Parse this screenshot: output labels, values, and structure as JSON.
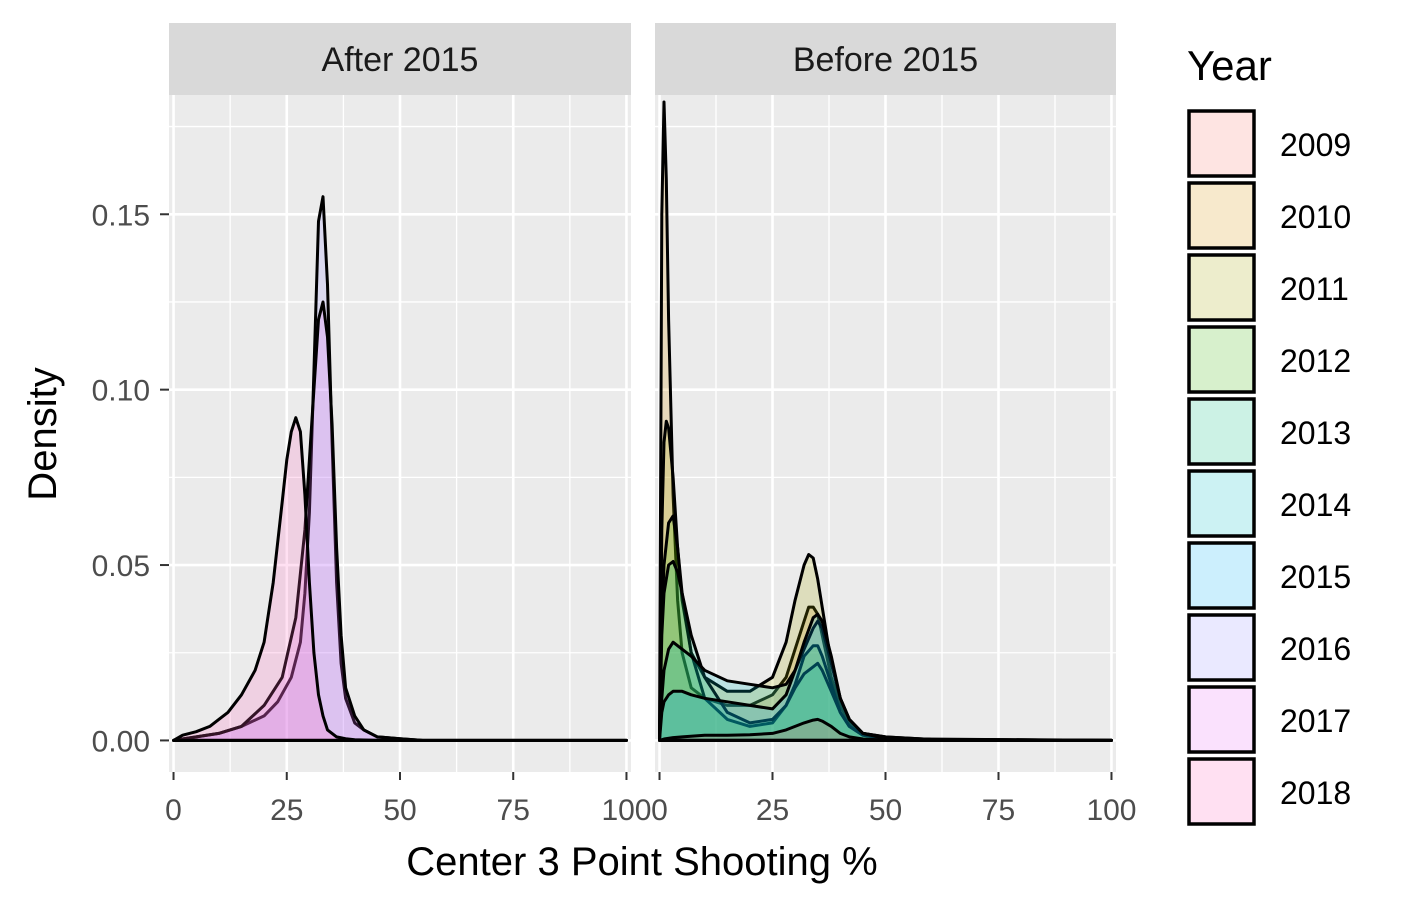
{
  "chart_data": {
    "type": "area",
    "subtype": "density",
    "xlabel": "Center 3 Point Shooting %",
    "ylabel": "Density",
    "xlim": [
      -1,
      101
    ],
    "ylim": [
      -0.009,
      0.184
    ],
    "x_ticks": [
      0,
      25,
      50,
      75,
      100
    ],
    "x_tick_labels": [
      "0",
      "25",
      "50",
      "75",
      "100"
    ],
    "y_ticks": [
      0,
      0.05,
      0.1,
      0.15
    ],
    "y_tick_labels": [
      "0.00",
      "0.05",
      "0.10",
      "0.15"
    ],
    "grid": true,
    "legend": {
      "title": "Year",
      "position": "right",
      "entries": [
        "2009",
        "2010",
        "2011",
        "2012",
        "2013",
        "2014",
        "2015",
        "2016",
        "2017",
        "2018"
      ]
    },
    "colors": {
      "2009": "#F8766D",
      "2010": "#D89000",
      "2011": "#A3A500",
      "2012": "#39B600",
      "2013": "#00BF7D",
      "2014": "#00BFC4",
      "2015": "#00B0F6",
      "2016": "#9590FF",
      "2017": "#E76BF3",
      "2018": "#FF62BC"
    },
    "panels": [
      {
        "title": "After 2015",
        "series": [
          {
            "name": "2016",
            "x": [
              0,
              5,
              10,
              15,
              20,
              23,
              26,
              28,
              29,
              30,
              31,
              32,
              33,
              34,
              35,
              36,
              37,
              38,
              40,
              42,
              45,
              50,
              55,
              100
            ],
            "y": [
              0,
              0.001,
              0.002,
              0.004,
              0.007,
              0.011,
              0.018,
              0.028,
              0.042,
              0.065,
              0.105,
              0.148,
              0.155,
              0.13,
              0.085,
              0.045,
              0.022,
              0.012,
              0.005,
              0.003,
              0.001,
              0.0005,
              0,
              0
            ]
          },
          {
            "name": "2017",
            "x": [
              0,
              5,
              10,
              15,
              20,
              24,
              27,
              29,
              30,
              31,
              32,
              33,
              34,
              35,
              36,
              37,
              38,
              40,
              42,
              45,
              50,
              55,
              100
            ],
            "y": [
              0,
              0.001,
              0.002,
              0.004,
              0.01,
              0.018,
              0.035,
              0.06,
              0.08,
              0.1,
              0.12,
              0.125,
              0.115,
              0.09,
              0.055,
              0.03,
              0.015,
              0.007,
              0.003,
              0.001,
              0.0005,
              0,
              0
            ]
          },
          {
            "name": "2018",
            "x": [
              0,
              2,
              5,
              8,
              10,
              12,
              15,
              18,
              20,
              22,
              24,
              25,
              26,
              27,
              28,
              29,
              30,
              31,
              32,
              33,
              34,
              36,
              38,
              40,
              45,
              50,
              100
            ],
            "y": [
              0,
              0.0015,
              0.0025,
              0.004,
              0.006,
              0.008,
              0.013,
              0.02,
              0.028,
              0.045,
              0.068,
              0.08,
              0.088,
              0.092,
              0.088,
              0.07,
              0.045,
              0.025,
              0.013,
              0.007,
              0.003,
              0.001,
              0.0005,
              0.0002,
              0,
              0,
              0
            ]
          }
        ]
      },
      {
        "title": "Before 2015",
        "series": [
          {
            "name": "2010",
            "x": [
              0,
              0.5,
              1,
              1.5,
              2,
              3,
              4,
              5,
              7,
              10,
              15,
              20,
              25,
              28,
              30,
              32,
              33,
              34,
              35,
              36,
              38,
              40,
              42,
              45,
              50,
              60,
              100
            ],
            "y": [
              0,
              0.15,
              0.182,
              0.16,
              0.12,
              0.07,
              0.04,
              0.025,
              0.015,
              0.012,
              0.01,
              0.01,
              0.013,
              0.018,
              0.026,
              0.034,
              0.038,
              0.038,
              0.036,
              0.03,
              0.018,
              0.01,
              0.005,
              0.002,
              0.001,
              0.0003,
              0
            ]
          },
          {
            "name": "2011",
            "x": [
              0,
              0.5,
              1,
              1.5,
              2,
              3,
              4,
              5,
              7,
              10,
              15,
              20,
              25,
              28,
              30,
              32,
              33,
              34,
              35,
              36,
              38,
              40,
              42,
              45,
              50,
              60,
              100
            ],
            "y": [
              0,
              0.06,
              0.085,
              0.091,
              0.089,
              0.075,
              0.055,
              0.04,
              0.025,
              0.018,
              0.014,
              0.014,
              0.018,
              0.028,
              0.04,
              0.05,
              0.053,
              0.052,
              0.046,
              0.038,
              0.022,
              0.012,
              0.006,
              0.002,
              0.001,
              0.0003,
              0
            ]
          },
          {
            "name": "2012",
            "x": [
              0,
              0.5,
              1,
              2,
              3,
              4,
              5,
              7,
              10,
              15,
              20,
              25,
              28,
              30,
              32,
              34,
              35,
              36,
              38,
              40,
              42,
              45,
              50,
              60,
              100
            ],
            "y": [
              0,
              0.035,
              0.05,
              0.062,
              0.064,
              0.055,
              0.042,
              0.025,
              0.012,
              0.006,
              0.004,
              0.005,
              0.01,
              0.016,
              0.024,
              0.027,
              0.027,
              0.024,
              0.016,
              0.008,
              0.004,
              0.0015,
              0.0005,
              0,
              0
            ]
          },
          {
            "name": "2013",
            "x": [
              0,
              0.5,
              1,
              2,
              3,
              4,
              5,
              7,
              10,
              15,
              20,
              25,
              28,
              30,
              32,
              34,
              35,
              36,
              38,
              40,
              42,
              45,
              50,
              60,
              100
            ],
            "y": [
              0,
              0.03,
              0.042,
              0.05,
              0.051,
              0.048,
              0.042,
              0.03,
              0.018,
              0.008,
              0.005,
              0.006,
              0.01,
              0.015,
              0.019,
              0.021,
              0.022,
              0.02,
              0.014,
              0.008,
              0.004,
              0.0015,
              0.0005,
              0,
              0
            ]
          },
          {
            "name": "2014",
            "x": [
              0,
              0.5,
              1,
              2,
              3,
              5,
              7,
              10,
              15,
              20,
              25,
              28,
              30,
              32,
              34,
              35,
              36,
              38,
              40,
              42,
              45,
              50,
              60,
              100
            ],
            "y": [
              0,
              0.012,
              0.02,
              0.026,
              0.028,
              0.026,
              0.024,
              0.02,
              0.017,
              0.016,
              0.015,
              0.016,
              0.02,
              0.026,
              0.032,
              0.034,
              0.032,
              0.022,
              0.012,
              0.006,
              0.002,
              0.0008,
              0.0002,
              0
            ]
          },
          {
            "name": "2015",
            "x": [
              0,
              0.5,
              1,
              2,
              3,
              5,
              7,
              10,
              15,
              20,
              25,
              28,
              30,
              32,
              34,
              35,
              36,
              38,
              40,
              42,
              45,
              50,
              100
            ],
            "y": [
              0,
              0.008,
              0.011,
              0.013,
              0.014,
              0.014,
              0.013,
              0.012,
              0.011,
              0.01,
              0.009,
              0.013,
              0.02,
              0.028,
              0.035,
              0.036,
              0.034,
              0.024,
              0.012,
              0.006,
              0.002,
              0.0005,
              0
            ]
          },
          {
            "name": "2009",
            "x": [
              0,
              1,
              3,
              5,
              10,
              15,
              20,
              25,
              28,
              30,
              32,
              34,
              35,
              36,
              38,
              40,
              42,
              45,
              50,
              100
            ],
            "y": [
              0,
              0.0004,
              0.0008,
              0.001,
              0.0015,
              0.0015,
              0.0016,
              0.002,
              0.003,
              0.004,
              0.005,
              0.0058,
              0.006,
              0.0055,
              0.004,
              0.002,
              0.001,
              0.0004,
              0.0001,
              0
            ]
          }
        ]
      }
    ]
  }
}
